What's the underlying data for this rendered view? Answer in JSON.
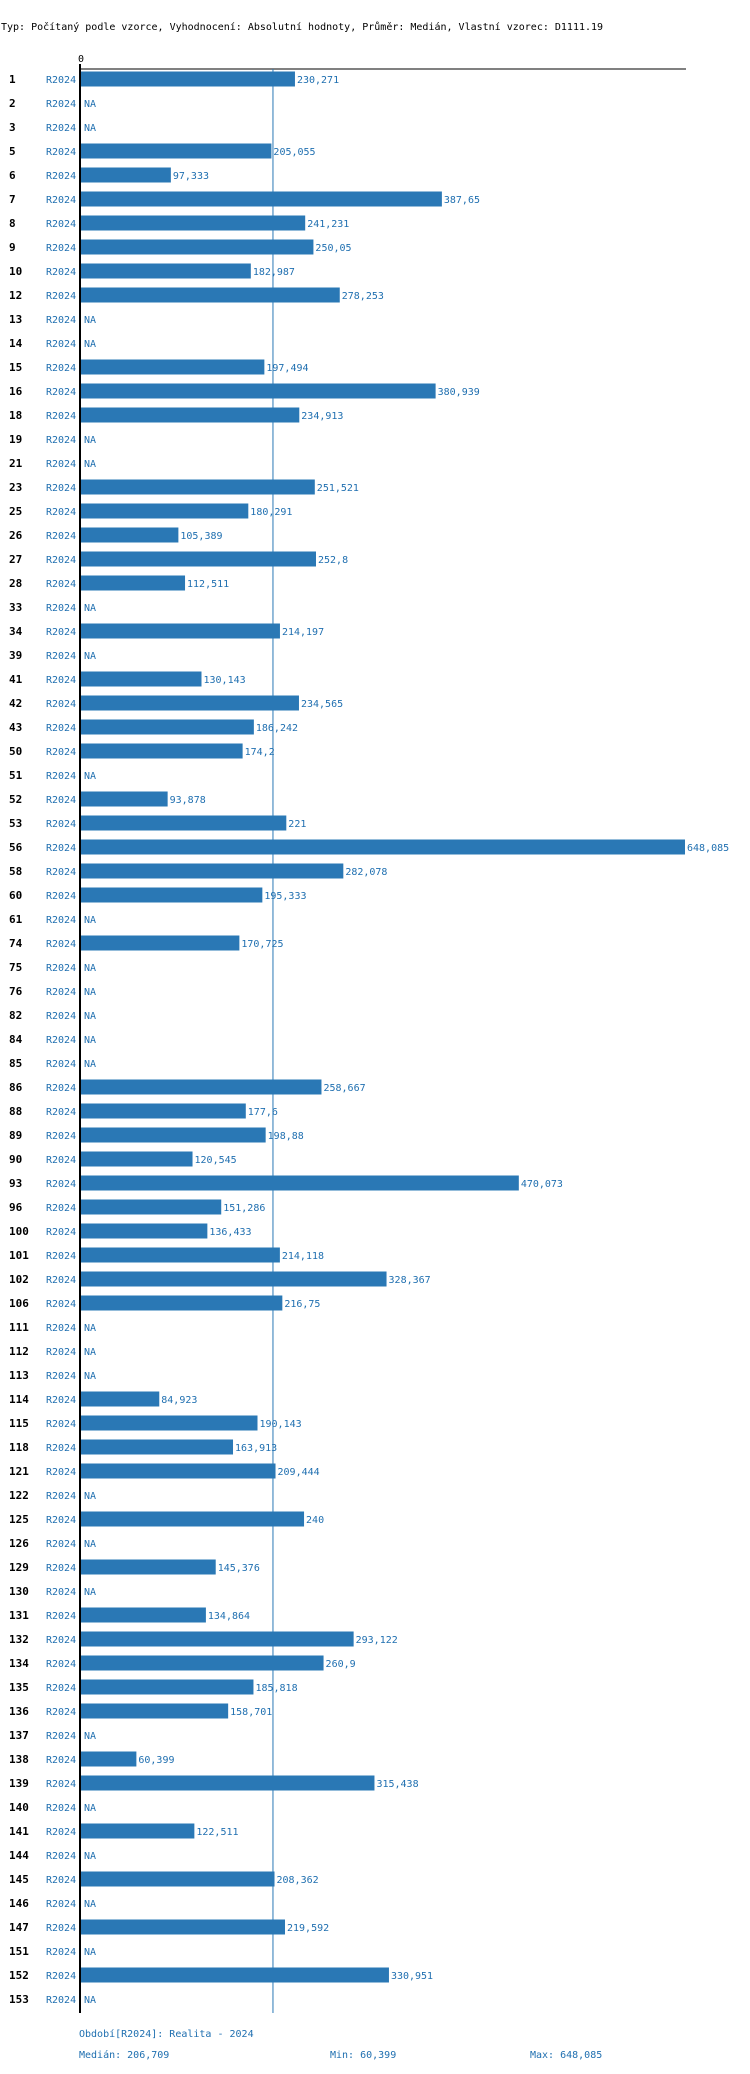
{
  "header": "Typ: Počítaný podle vzorce, Vyhodnocení: Absolutní hodnoty, Průměr: Medián, Vlastní vzorec: D1111.19",
  "colors": {
    "bar": "#2a78b5",
    "text_blue": "#1f6fb0",
    "axis": "#000000",
    "median_line": "#2a78b5"
  },
  "chart_data": {
    "type": "bar",
    "orientation": "horizontal",
    "title": "Typ: Počítaný podle vzorce, Vyhodnocení: Absolutní hodnoty, Průměr: Medián, Vlastní vzorec: D1111.19",
    "axis_zero_label": "0",
    "series_label": "R2024",
    "xlim": [
      0,
      648.085
    ],
    "median": 206.709,
    "rows": [
      {
        "id": "1",
        "value": 230.271,
        "label": "230,271"
      },
      {
        "id": "2",
        "value": null,
        "label": "NA"
      },
      {
        "id": "3",
        "value": null,
        "label": "NA"
      },
      {
        "id": "5",
        "value": 205.055,
        "label": "205,055"
      },
      {
        "id": "6",
        "value": 97.333,
        "label": "97,333"
      },
      {
        "id": "7",
        "value": 387.65,
        "label": "387,65"
      },
      {
        "id": "8",
        "value": 241.231,
        "label": "241,231"
      },
      {
        "id": "9",
        "value": 250.05,
        "label": "250,05"
      },
      {
        "id": "10",
        "value": 182.987,
        "label": "182,987"
      },
      {
        "id": "12",
        "value": 278.253,
        "label": "278,253"
      },
      {
        "id": "13",
        "value": null,
        "label": "NA"
      },
      {
        "id": "14",
        "value": null,
        "label": "NA"
      },
      {
        "id": "15",
        "value": 197.494,
        "label": "197,494"
      },
      {
        "id": "16",
        "value": 380.939,
        "label": "380,939"
      },
      {
        "id": "18",
        "value": 234.913,
        "label": "234,913"
      },
      {
        "id": "19",
        "value": null,
        "label": "NA"
      },
      {
        "id": "21",
        "value": null,
        "label": "NA"
      },
      {
        "id": "23",
        "value": 251.521,
        "label": "251,521"
      },
      {
        "id": "25",
        "value": 180.291,
        "label": "180,291"
      },
      {
        "id": "26",
        "value": 105.389,
        "label": "105,389"
      },
      {
        "id": "27",
        "value": 252.8,
        "label": "252,8"
      },
      {
        "id": "28",
        "value": 112.511,
        "label": "112,511"
      },
      {
        "id": "33",
        "value": null,
        "label": "NA"
      },
      {
        "id": "34",
        "value": 214.197,
        "label": "214,197"
      },
      {
        "id": "39",
        "value": null,
        "label": "NA"
      },
      {
        "id": "41",
        "value": 130.143,
        "label": "130,143"
      },
      {
        "id": "42",
        "value": 234.565,
        "label": "234,565"
      },
      {
        "id": "43",
        "value": 186.242,
        "label": "186,242"
      },
      {
        "id": "50",
        "value": 174.2,
        "label": "174,2"
      },
      {
        "id": "51",
        "value": null,
        "label": "NA"
      },
      {
        "id": "52",
        "value": 93.878,
        "label": "93,878"
      },
      {
        "id": "53",
        "value": 221,
        "label": "221"
      },
      {
        "id": "56",
        "value": 648.085,
        "label": "648,085"
      },
      {
        "id": "58",
        "value": 282.078,
        "label": "282,078"
      },
      {
        "id": "60",
        "value": 195.333,
        "label": "195,333"
      },
      {
        "id": "61",
        "value": null,
        "label": "NA"
      },
      {
        "id": "74",
        "value": 170.725,
        "label": "170,725"
      },
      {
        "id": "75",
        "value": null,
        "label": "NA"
      },
      {
        "id": "76",
        "value": null,
        "label": "NA"
      },
      {
        "id": "82",
        "value": null,
        "label": "NA"
      },
      {
        "id": "84",
        "value": null,
        "label": "NA"
      },
      {
        "id": "85",
        "value": null,
        "label": "NA"
      },
      {
        "id": "86",
        "value": 258.667,
        "label": "258,667"
      },
      {
        "id": "88",
        "value": 177.6,
        "label": "177,6"
      },
      {
        "id": "89",
        "value": 198.88,
        "label": "198,88"
      },
      {
        "id": "90",
        "value": 120.545,
        "label": "120,545"
      },
      {
        "id": "93",
        "value": 470.073,
        "label": "470,073"
      },
      {
        "id": "96",
        "value": 151.286,
        "label": "151,286"
      },
      {
        "id": "100",
        "value": 136.433,
        "label": "136,433"
      },
      {
        "id": "101",
        "value": 214.118,
        "label": "214,118"
      },
      {
        "id": "102",
        "value": 328.367,
        "label": "328,367"
      },
      {
        "id": "106",
        "value": 216.75,
        "label": "216,75"
      },
      {
        "id": "111",
        "value": null,
        "label": "NA"
      },
      {
        "id": "112",
        "value": null,
        "label": "NA"
      },
      {
        "id": "113",
        "value": null,
        "label": "NA"
      },
      {
        "id": "114",
        "value": 84.923,
        "label": "84,923"
      },
      {
        "id": "115",
        "value": 190.143,
        "label": "190,143"
      },
      {
        "id": "118",
        "value": 163.913,
        "label": "163,913"
      },
      {
        "id": "121",
        "value": 209.444,
        "label": "209,444"
      },
      {
        "id": "122",
        "value": null,
        "label": "NA"
      },
      {
        "id": "125",
        "value": 240,
        "label": "240"
      },
      {
        "id": "126",
        "value": null,
        "label": "NA"
      },
      {
        "id": "129",
        "value": 145.376,
        "label": "145,376"
      },
      {
        "id": "130",
        "value": null,
        "label": "NA"
      },
      {
        "id": "131",
        "value": 134.864,
        "label": "134,864"
      },
      {
        "id": "132",
        "value": 293.122,
        "label": "293,122"
      },
      {
        "id": "134",
        "value": 260.9,
        "label": "260,9"
      },
      {
        "id": "135",
        "value": 185.818,
        "label": "185,818"
      },
      {
        "id": "136",
        "value": 158.701,
        "label": "158,701"
      },
      {
        "id": "137",
        "value": null,
        "label": "NA"
      },
      {
        "id": "138",
        "value": 60.399,
        "label": "60,399"
      },
      {
        "id": "139",
        "value": 315.438,
        "label": "315,438"
      },
      {
        "id": "140",
        "value": null,
        "label": "NA"
      },
      {
        "id": "141",
        "value": 122.511,
        "label": "122,511"
      },
      {
        "id": "144",
        "value": null,
        "label": "NA"
      },
      {
        "id": "145",
        "value": 208.362,
        "label": "208,362"
      },
      {
        "id": "146",
        "value": null,
        "label": "NA"
      },
      {
        "id": "147",
        "value": 219.592,
        "label": "219,592"
      },
      {
        "id": "151",
        "value": null,
        "label": "NA"
      },
      {
        "id": "152",
        "value": 330.951,
        "label": "330,951"
      },
      {
        "id": "153",
        "value": null,
        "label": "NA"
      }
    ],
    "footer": {
      "period": "Období[R2024]: Realita - 2024",
      "median": "Medián: 206,709",
      "min": "Min: 60,399",
      "max": "Max: 648,085"
    }
  }
}
